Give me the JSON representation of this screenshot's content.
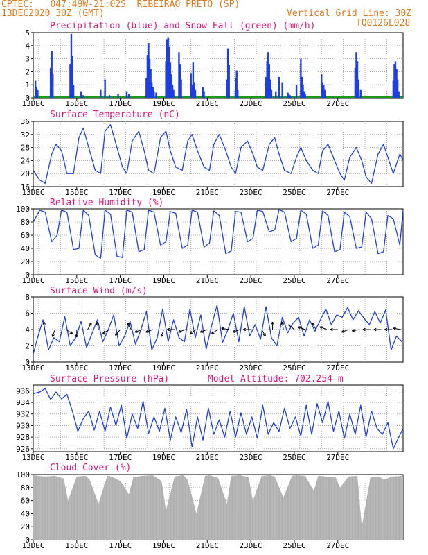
{
  "header": {
    "line1_left": "CPTEC:   047:49W-21:02S  RIBEIRAO PRETO (SP)",
    "line2_left": "13DEC2020 30Z (GMT)",
    "line2_right": "Vertical Grid Line: 30Z",
    "line3_right": "TQ0126L028",
    "header_color": "#e07a1a"
  },
  "colors": {
    "title": "#e0147a",
    "line": "#1f3ee0",
    "precip": "#1f3ee0",
    "snow": "#1a9a1a",
    "cloud": "#a9a9a9",
    "grid": "#9a9a9a"
  },
  "x_ticks": [
    "13DEC",
    "15DEC",
    "17DEC",
    "19DEC",
    "21DEC",
    "23DEC",
    "25DEC",
    "27DEC"
  ],
  "chart_data": [
    {
      "id": "precip",
      "type": "bar",
      "title": "Precipitation (blue) and Snow Fall (green) (mm/h)",
      "ylim": [
        0,
        5
      ],
      "yticks": [
        "0",
        "1",
        "2",
        "3",
        "4",
        "5"
      ],
      "x_unit": "days since 13DEC 00Z",
      "x": [
        0.1,
        0.15,
        0.2,
        0.8,
        0.85,
        0.9,
        1.7,
        1.75,
        1.8,
        1.85,
        2.2,
        2.3,
        3.1,
        3.3,
        3.5,
        3.9,
        4.3,
        4.4,
        5.2,
        5.25,
        5.3,
        5.35,
        5.4,
        5.45,
        5.5,
        5.55,
        5.65,
        6.1,
        6.15,
        6.2,
        6.25,
        6.3,
        6.35,
        6.4,
        6.45,
        6.7,
        6.75,
        6.8,
        7.25,
        7.3,
        7.35,
        7.4,
        7.45,
        7.8,
        7.85,
        8.9,
        8.95,
        9.0,
        9.3,
        9.35,
        9.4,
        10.7,
        10.75,
        10.8,
        10.85,
        10.9,
        10.95,
        11.15,
        11.3,
        11.45,
        11.7,
        11.75,
        11.8,
        11.85,
        12.1,
        12.3,
        12.35,
        12.4,
        12.45,
        12.5,
        13.25,
        13.3,
        13.35,
        13.4,
        14.8,
        14.85,
        14.9,
        14.95,
        15.05,
        16.55,
        16.6,
        16.65,
        16.7,
        16.75,
        16.8
      ],
      "values": [
        1.3,
        0.8,
        0.6,
        2.3,
        3.6,
        1.8,
        2.6,
        4.9,
        3.2,
        1.0,
        0.5,
        0.2,
        0.6,
        1.4,
        0.2,
        0.3,
        0.5,
        0.3,
        1.5,
        3.3,
        4.2,
        3.0,
        2.2,
        1.2,
        0.8,
        0.5,
        0.4,
        2.8,
        4.5,
        4.6,
        3.9,
        2.7,
        1.8,
        1.0,
        0.6,
        3.5,
        2.6,
        1.4,
        1.9,
        1.0,
        2.7,
        1.2,
        0.6,
        0.8,
        0.5,
        1.4,
        3.8,
        2.5,
        1.5,
        2.1,
        0.6,
        1.6,
        2.8,
        3.5,
        2.6,
        1.4,
        0.6,
        0.5,
        1.6,
        1.2,
        0.4,
        0.3,
        0.2,
        0.1,
        1.0,
        3.0,
        1.6,
        1.0,
        0.5,
        0.3,
        1.8,
        1.2,
        1.0,
        0.6,
        2.3,
        3.5,
        2.8,
        1.4,
        0.6,
        1.3,
        2.6,
        2.8,
        2.2,
        1.4,
        0.5
      ],
      "snow_values": 0
    },
    {
      "id": "temp",
      "type": "line",
      "title": "Surface Temperature (nC)",
      "ylim": [
        16,
        36
      ],
      "yticks": [
        "16",
        "20",
        "24",
        "28",
        "32",
        "36"
      ],
      "x": [
        0,
        0.3,
        0.55,
        0.85,
        1.05,
        1.3,
        1.55,
        1.85,
        2.1,
        2.3,
        2.55,
        2.85,
        3.1,
        3.3,
        3.55,
        3.85,
        4.1,
        4.3,
        4.55,
        4.85,
        5.1,
        5.3,
        5.55,
        5.85,
        6.1,
        6.3,
        6.55,
        6.85,
        7.1,
        7.3,
        7.55,
        7.85,
        8.1,
        8.3,
        8.55,
        8.85,
        9.1,
        9.3,
        9.55,
        9.85,
        10.1,
        10.3,
        10.55,
        10.85,
        11.1,
        11.3,
        11.55,
        11.85,
        12.1,
        12.3,
        12.55,
        12.85,
        13.1,
        13.3,
        13.55,
        13.85,
        14.1,
        14.3,
        14.55,
        14.85,
        15.1,
        15.3,
        15.55,
        15.85,
        16.1,
        16.3,
        16.55,
        16.85,
        17.0
      ],
      "values": [
        21,
        18,
        17,
        26,
        29,
        27,
        20,
        20,
        31,
        34,
        28,
        21,
        20,
        33,
        35,
        28,
        22,
        20,
        30,
        33,
        27,
        21,
        20,
        31,
        33,
        27,
        22,
        21,
        30,
        32,
        27,
        22,
        21,
        29,
        32,
        27,
        22,
        20,
        28,
        30,
        26,
        22,
        21,
        29,
        31,
        26,
        21,
        20,
        25,
        28,
        24,
        21,
        20,
        27,
        29,
        24,
        20,
        18,
        25,
        28,
        24,
        19,
        17,
        26,
        29,
        25,
        20,
        26,
        24
      ],
      "xlabel": "",
      "ylabel": ""
    },
    {
      "id": "rh",
      "type": "line",
      "title": "Relative Humidity (%)",
      "ylim": [
        0,
        100
      ],
      "yticks": [
        "0",
        "20",
        "40",
        "60",
        "80",
        "100"
      ],
      "x": [
        0,
        0.3,
        0.55,
        0.85,
        1.1,
        1.3,
        1.55,
        1.85,
        2.1,
        2.3,
        2.55,
        2.85,
        3.1,
        3.3,
        3.55,
        3.85,
        4.1,
        4.3,
        4.55,
        4.85,
        5.1,
        5.3,
        5.55,
        5.85,
        6.1,
        6.3,
        6.55,
        6.85,
        7.1,
        7.3,
        7.55,
        7.85,
        8.1,
        8.3,
        8.55,
        8.85,
        9.1,
        9.3,
        9.55,
        9.85,
        10.1,
        10.3,
        10.55,
        10.85,
        11.1,
        11.3,
        11.55,
        11.85,
        12.1,
        12.3,
        12.55,
        12.85,
        13.1,
        13.3,
        13.55,
        13.85,
        14.1,
        14.3,
        14.55,
        14.85,
        15.1,
        15.3,
        15.55,
        15.85,
        16.1,
        16.3,
        16.55,
        16.85,
        17.0
      ],
      "values": [
        80,
        98,
        95,
        50,
        60,
        98,
        95,
        38,
        40,
        98,
        90,
        30,
        25,
        98,
        92,
        28,
        26,
        98,
        95,
        35,
        38,
        98,
        95,
        45,
        50,
        96,
        93,
        40,
        45,
        98,
        95,
        42,
        48,
        97,
        90,
        32,
        36,
        96,
        95,
        50,
        55,
        98,
        96,
        65,
        68,
        99,
        95,
        50,
        55,
        98,
        92,
        40,
        45,
        97,
        90,
        35,
        38,
        95,
        88,
        40,
        42,
        95,
        85,
        32,
        35,
        90,
        85,
        45,
        98
      ],
      "xlabel": "",
      "ylabel": ""
    },
    {
      "id": "wind",
      "type": "line",
      "title": "Surface Wind (m/s)",
      "ylim": [
        0,
        8
      ],
      "yticks": [
        "0",
        "2",
        "4",
        "6",
        "8"
      ],
      "x": [
        0,
        0.2,
        0.45,
        0.7,
        0.95,
        1.2,
        1.45,
        1.7,
        1.95,
        2.2,
        2.45,
        2.7,
        2.95,
        3.2,
        3.45,
        3.7,
        3.95,
        4.2,
        4.45,
        4.7,
        4.95,
        5.2,
        5.45,
        5.7,
        5.95,
        6.2,
        6.45,
        6.7,
        6.95,
        7.2,
        7.45,
        7.7,
        7.95,
        8.2,
        8.45,
        8.7,
        8.95,
        9.2,
        9.45,
        9.7,
        9.95,
        10.2,
        10.45,
        10.7,
        10.95,
        11.2,
        11.45,
        11.7,
        11.95,
        12.2,
        12.45,
        12.7,
        12.95,
        13.2,
        13.45,
        13.7,
        13.95,
        14.2,
        14.45,
        14.7,
        14.95,
        15.2,
        15.45,
        15.7,
        15.95,
        16.2,
        16.45,
        16.7,
        16.95
      ],
      "values": [
        1.0,
        3.0,
        5.2,
        1.5,
        3.0,
        2.5,
        5.6,
        2.0,
        3.0,
        5.0,
        1.8,
        3.5,
        5.2,
        2.5,
        4.0,
        5.8,
        2.0,
        3.2,
        5.0,
        2.2,
        4.0,
        6.2,
        1.5,
        3.0,
        6.5,
        2.5,
        5.2,
        3.0,
        2.5,
        6.5,
        3.0,
        5.8,
        1.6,
        4.5,
        7.0,
        2.4,
        4.0,
        6.0,
        2.5,
        6.8,
        3.2,
        4.6,
        2.8,
        6.8,
        3.0,
        2.0,
        5.5,
        3.6,
        4.8,
        5.5,
        3.2,
        5.2,
        3.8,
        5.2,
        6.5,
        4.6,
        5.8,
        5.5,
        6.7,
        5.2,
        6.3,
        5.4,
        4.6,
        6.2,
        4.8,
        6.4,
        1.5,
        3.2,
        2.5
      ],
      "arrows_x": [
        0.5,
        1.0,
        1.5,
        2.0,
        2.5,
        3.0,
        3.5,
        4.0,
        4.5,
        5.0,
        5.5,
        6.0,
        6.5,
        7.0,
        7.5,
        8.0,
        8.5,
        9.0,
        9.5,
        10.0,
        10.5,
        11.0,
        11.5,
        12.0,
        12.5,
        13.0,
        13.5,
        14.0,
        14.5,
        15.0,
        15.5,
        16.0,
        16.5,
        16.9
      ],
      "arrows_dir_deg": [
        90,
        250,
        330,
        270,
        60,
        100,
        210,
        230,
        120,
        200,
        200,
        250,
        180,
        200,
        210,
        200,
        210,
        170,
        200,
        180,
        300,
        90,
        100,
        140,
        160,
        120,
        160,
        180,
        200,
        190,
        180,
        180,
        180,
        170
      ],
      "xlabel": "",
      "ylabel": ""
    },
    {
      "id": "pres",
      "type": "line",
      "title": "Surface Pressure (hPa)",
      "subtitle": "Model Altitude: 702.254 m",
      "ylim": [
        925.5,
        937
      ],
      "yticks": [
        "926",
        "928",
        "930",
        "932",
        "934",
        "936"
      ],
      "x": [
        0,
        0.3,
        0.55,
        0.8,
        1.05,
        1.3,
        1.55,
        1.8,
        2.05,
        2.3,
        2.55,
        2.8,
        3.05,
        3.3,
        3.55,
        3.8,
        4.05,
        4.3,
        4.55,
        4.8,
        5.05,
        5.3,
        5.55,
        5.8,
        6.05,
        6.3,
        6.55,
        6.8,
        7.05,
        7.3,
        7.55,
        7.8,
        8.05,
        8.3,
        8.55,
        8.8,
        9.05,
        9.3,
        9.55,
        9.8,
        10.05,
        10.3,
        10.55,
        10.8,
        11.05,
        11.3,
        11.55,
        11.8,
        12.05,
        12.3,
        12.55,
        12.8,
        13.05,
        13.3,
        13.55,
        13.8,
        14.05,
        14.3,
        14.55,
        14.8,
        15.05,
        15.3,
        15.55,
        15.8,
        16.05,
        16.3,
        16.55,
        16.8,
        17.0
      ],
      "values": [
        935.5,
        935.8,
        936.4,
        934.5,
        935.8,
        934.6,
        935.4,
        932.5,
        929.0,
        931.2,
        932.5,
        929.2,
        932.5,
        929.0,
        933.2,
        930.0,
        933.5,
        927.8,
        932.0,
        929.5,
        934.2,
        928.6,
        931.5,
        929.0,
        933.0,
        927.5,
        931.5,
        928.8,
        932.8,
        926.3,
        931.5,
        927.5,
        933.0,
        928.5,
        931.0,
        928.0,
        932.5,
        928.0,
        932.2,
        928.5,
        931.5,
        927.8,
        933.5,
        928.5,
        930.5,
        929.0,
        933.0,
        929.5,
        931.5,
        928.2,
        933.5,
        928.5,
        933.8,
        930.5,
        934.2,
        929.0,
        932.5,
        927.8,
        932.0,
        928.5,
        933.5,
        928.0,
        932.5,
        929.5,
        928.5,
        930.5,
        926.0,
        928.0,
        929.5
      ],
      "xlabel": "",
      "ylabel": ""
    },
    {
      "id": "cloud",
      "type": "area",
      "title": "Cloud Cover (%)",
      "ylim": [
        0,
        100
      ],
      "yticks": [
        "0",
        "20",
        "40",
        "60",
        "80",
        "100"
      ],
      "x": [
        0,
        0.5,
        1.0,
        1.4,
        1.6,
        2.0,
        2.4,
        2.6,
        3.0,
        3.4,
        3.6,
        4.0,
        4.4,
        4.6,
        5.0,
        5.5,
        5.9,
        6.1,
        6.5,
        6.9,
        7.1,
        7.5,
        7.9,
        8.1,
        8.5,
        8.9,
        9.1,
        9.5,
        9.9,
        10.1,
        10.5,
        10.9,
        11.1,
        11.5,
        11.9,
        12.1,
        12.5,
        12.9,
        13.1,
        13.5,
        13.9,
        14.1,
        14.5,
        14.9,
        15.1,
        15.5,
        15.9,
        16.1,
        16.5,
        17.0
      ],
      "values": [
        99,
        97,
        98,
        94,
        60,
        97,
        98,
        92,
        55,
        98,
        97,
        90,
        70,
        96,
        98,
        99,
        90,
        45,
        97,
        99,
        92,
        40,
        98,
        99,
        95,
        55,
        98,
        99,
        96,
        60,
        98,
        99,
        97,
        65,
        98,
        99,
        98,
        75,
        98,
        97,
        96,
        80,
        97,
        98,
        20,
        96,
        97,
        92,
        97,
        98
      ]
    }
  ]
}
